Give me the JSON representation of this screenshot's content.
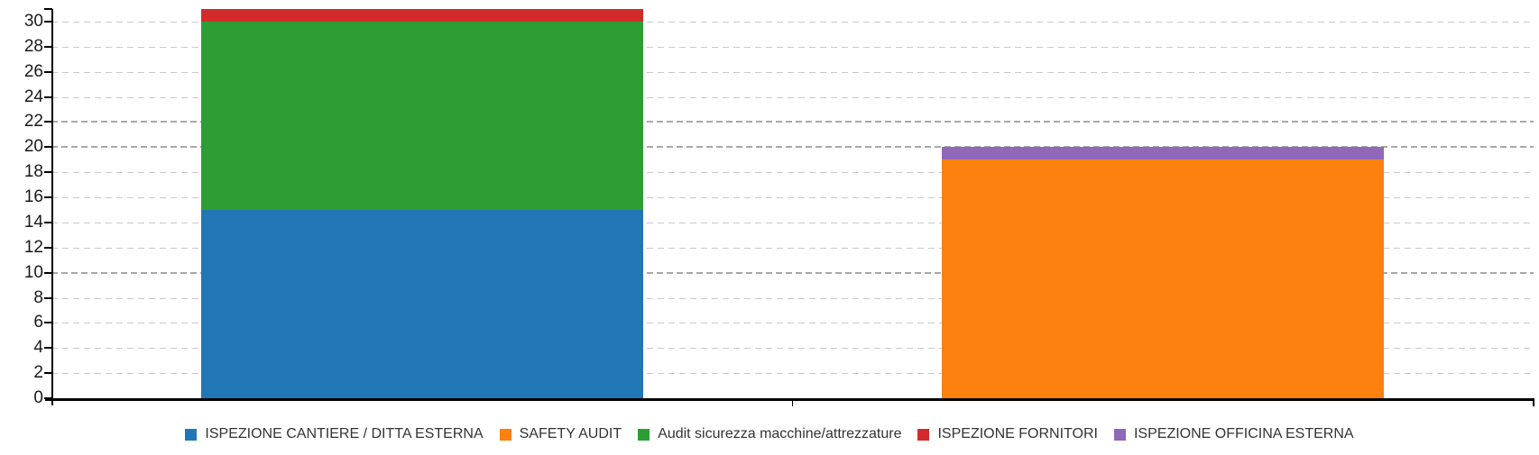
{
  "chart_data": {
    "type": "bar",
    "variant": "stacked-vertical-columns",
    "title": "",
    "categories": [
      "",
      ""
    ],
    "series": [
      {
        "name": "ISPEZIONE CANTIERE / DITTA ESTERNA",
        "color": "#2176B5",
        "values": [
          15,
          0
        ]
      },
      {
        "name": "SAFETY AUDIT",
        "color": "#FD810E",
        "values": [
          0,
          19
        ]
      },
      {
        "name": "Audit sicurezza macchine/attrezzature",
        "color": "#2D9E33",
        "values": [
          15,
          0
        ]
      },
      {
        "name": "ISPEZIONE FORNITORI",
        "color": "#D32B2B",
        "values": [
          1,
          0
        ]
      },
      {
        "name": "ISPEZIONE OFFICINA ESTERNA",
        "color": "#9168B8",
        "values": [
          0,
          1
        ]
      }
    ],
    "stack_totals": [
      31,
      20
    ],
    "y_axis": {
      "min": 0,
      "max": 31,
      "tick_interval": 2,
      "tick_labels": [
        "0",
        "2",
        "4",
        "6",
        "8",
        "10",
        "12",
        "14",
        "16",
        "18",
        "20",
        "22",
        "24",
        "26",
        "28",
        "30"
      ]
    },
    "x_axis": {
      "category_labels_visible": false
    },
    "grid": {
      "style": "dashed",
      "minor_color": "#C9C9C9",
      "emphasized_color": "#A8A8A8",
      "emphasized_values": [
        10,
        20,
        22
      ]
    },
    "legend": {
      "position": "bottom-center"
    },
    "colors": {
      "axis": "#000000",
      "tick_label": "#1A1A1A",
      "legend_text": "#333333",
      "background": "#FFFFFF"
    }
  }
}
